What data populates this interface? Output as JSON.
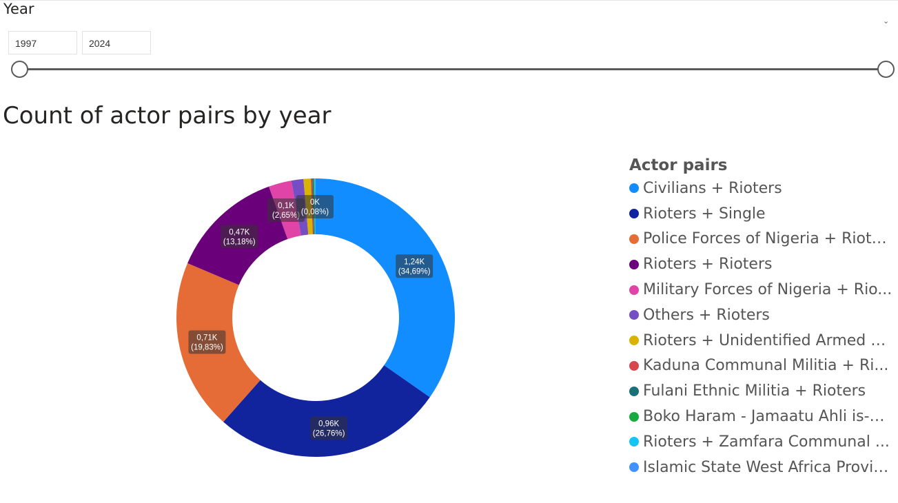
{
  "slicer": {
    "title": "Year",
    "start": "1997",
    "end": "2024",
    "chevron_icon": "chevron-down-icon"
  },
  "chart_data": {
    "type": "pie",
    "title": "Count of actor pairs by year",
    "legend_title": "Actor pairs",
    "legend_position": "right",
    "slices": [
      {
        "name": "Civilians + Rioters",
        "value": 1240,
        "percent": 34.69,
        "color": "#118DFF",
        "label": "1,24K",
        "label_pct": "(34,69%)"
      },
      {
        "name": "Rioters + Single",
        "value": 960,
        "percent": 26.76,
        "color": "#12239E",
        "label": "0,96K",
        "label_pct": "(26,76%)"
      },
      {
        "name": "Police Forces of Nigeria + Rioters",
        "value": 710,
        "percent": 19.83,
        "color": "#E66C37",
        "label": "0,71K",
        "label_pct": "(19,83%)"
      },
      {
        "name": "Rioters + Rioters",
        "value": 470,
        "percent": 13.18,
        "color": "#6B007B",
        "label": "0,47K",
        "label_pct": "(13,18%)"
      },
      {
        "name": "Military Forces of Nigeria + Rio...",
        "value": 95,
        "percent": 2.65,
        "color": "#E044A7",
        "label": "0,1K",
        "label_pct": "(2,65%)"
      },
      {
        "name": "Others + Rioters",
        "value": 50,
        "percent": 1.4,
        "color": "#744EC2",
        "label": "",
        "label_pct": ""
      },
      {
        "name": "Rioters + Unidentified Armed G...",
        "value": 30,
        "percent": 0.85,
        "color": "#D9B300",
        "label": "",
        "label_pct": ""
      },
      {
        "name": "Kaduna Communal Militia + Ri...",
        "value": 6,
        "percent": 0.17,
        "color": "#D64550",
        "label": "",
        "label_pct": ""
      },
      {
        "name": "Fulani Ethnic Militia + Rioters",
        "value": 5,
        "percent": 0.14,
        "color": "#197278",
        "label": "",
        "label_pct": ""
      },
      {
        "name": "Boko Haram - Jamaatu Ahli is-S...",
        "value": 4,
        "percent": 0.1,
        "color": "#1AAB40",
        "label": "",
        "label_pct": ""
      },
      {
        "name": "Rioters + Zamfara Communal ...",
        "value": 3,
        "percent": 0.08,
        "color": "#15C6F4",
        "label": "0K",
        "label_pct": "(0,08%)"
      },
      {
        "name": "Islamic State West Africa Provin...",
        "value": 2,
        "percent": 0.05,
        "color": "#4092FF",
        "label": "",
        "label_pct": ""
      }
    ]
  }
}
